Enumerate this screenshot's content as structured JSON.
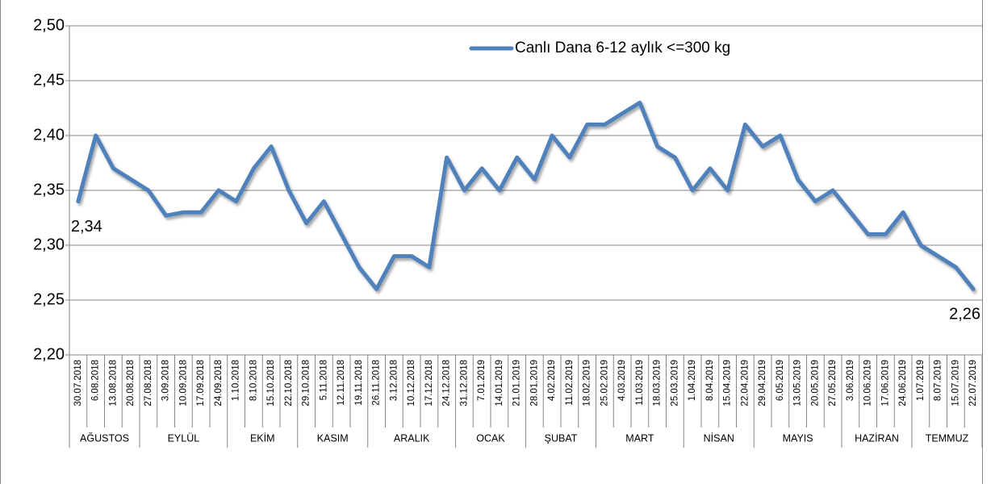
{
  "chart_data": {
    "type": "line",
    "groups": [
      {
        "label": "AĞUSTOS",
        "categories": [
          "30.07.2018",
          "6.08.2018",
          "13.08.2018",
          "20.08.2018"
        ]
      },
      {
        "label": "EYLÜL",
        "categories": [
          "27.08.2018",
          "3.09.2018",
          "10.09.2018",
          "17.09.2018",
          "24.09.2018"
        ]
      },
      {
        "label": "EKİM",
        "categories": [
          "1.10.2018",
          "8.10.2018",
          "15.10.2018",
          "22.10.2018"
        ]
      },
      {
        "label": "KASIM",
        "categories": [
          "29.10.2018",
          "5.11.2018",
          "12.11.2018",
          "19.11.2018"
        ]
      },
      {
        "label": "ARALIK",
        "categories": [
          "26.11.2018",
          "3.12.2018",
          "10.12.2018",
          "17.12.2018",
          "24.12.2018"
        ]
      },
      {
        "label": "OCAK",
        "categories": [
          "31.12.2018",
          "7.01.2019",
          "14.01.2019",
          "21.01.2019"
        ]
      },
      {
        "label": "ŞUBAT",
        "categories": [
          "28.01.2019",
          "4.02.2019",
          "11.02.2019",
          "18.02.2019"
        ]
      },
      {
        "label": "MART",
        "categories": [
          "25.02.2019",
          "4.03.2019",
          "11.03.2019",
          "18.03.2019",
          "25.03.2019"
        ]
      },
      {
        "label": "NİSAN",
        "categories": [
          "1.04.2019",
          "8.04.2019",
          "15.04.2019",
          "22.04.2019"
        ]
      },
      {
        "label": "MAYIS",
        "categories": [
          "29.04.2019",
          "6.05.2019",
          "13.05.2019",
          "20.05.2019",
          "27.05.2019"
        ]
      },
      {
        "label": "HAZİRAN",
        "categories": [
          "3.06.2019",
          "10.06.2019",
          "17.06.2019",
          "24.06.2019"
        ]
      },
      {
        "label": "TEMMUZ",
        "categories": [
          "1.07.2019",
          "8.07.2019",
          "15.07.2019",
          "22.07.2019"
        ]
      }
    ],
    "series": [
      {
        "name": "Canlı Dana 6-12 aylık <=300 kg",
        "color": "#4f81bd",
        "values": [
          2.34,
          2.4,
          2.37,
          2.36,
          2.35,
          2.327,
          2.33,
          2.33,
          2.35,
          2.34,
          2.37,
          2.39,
          2.35,
          2.32,
          2.34,
          2.31,
          2.28,
          2.26,
          2.29,
          2.29,
          2.28,
          2.38,
          2.35,
          2.37,
          2.35,
          2.38,
          2.36,
          2.4,
          2.38,
          2.41,
          2.41,
          2.42,
          2.43,
          2.39,
          2.38,
          2.35,
          2.37,
          2.35,
          2.41,
          2.39,
          2.4,
          2.36,
          2.34,
          2.35,
          2.33,
          2.31,
          2.31,
          2.33,
          2.3,
          2.29,
          2.28,
          2.26
        ],
        "value_labels": [
          "2,34",
          null,
          null,
          null,
          null,
          null,
          null,
          null,
          null,
          null,
          null,
          null,
          null,
          null,
          null,
          null,
          null,
          null,
          null,
          null,
          null,
          null,
          null,
          null,
          null,
          null,
          null,
          null,
          null,
          null,
          null,
          null,
          null,
          null,
          null,
          null,
          null,
          null,
          null,
          null,
          null,
          null,
          null,
          null,
          null,
          null,
          null,
          null,
          null,
          null,
          null,
          "2,26"
        ]
      }
    ],
    "ylim": [
      2.2,
      2.5
    ],
    "yticks": [
      {
        "value": 2.2,
        "label": "2,20"
      },
      {
        "value": 2.25,
        "label": "2,25"
      },
      {
        "value": 2.3,
        "label": "2,30"
      },
      {
        "value": 2.35,
        "label": "2,35"
      },
      {
        "value": 2.4,
        "label": "2,40"
      },
      {
        "value": 2.45,
        "label": "2,45"
      },
      {
        "value": 2.5,
        "label": "2,50"
      }
    ],
    "grid": true,
    "legend": "top-right"
  }
}
